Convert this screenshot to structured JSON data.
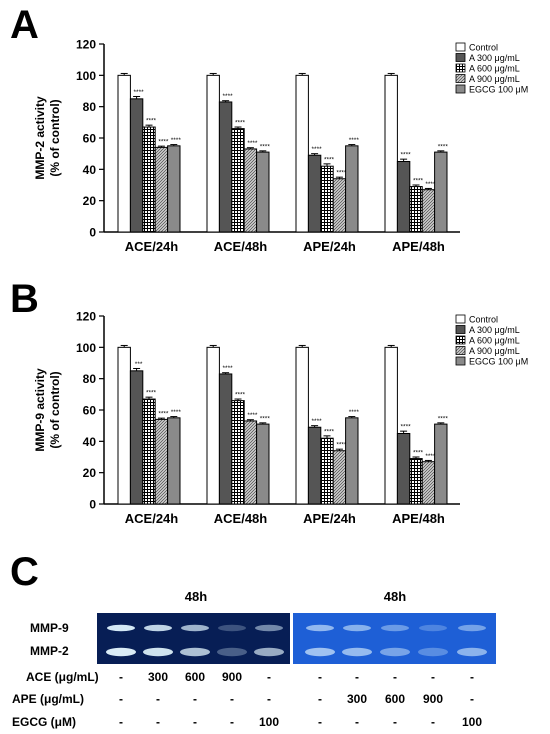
{
  "panels": {
    "a": "A",
    "b": "B",
    "c": "C"
  },
  "chart_data": [
    {
      "type": "bar",
      "panel": "A",
      "ylabel": "MMP-2 activity\n(% of control)",
      "ylim": [
        0,
        120
      ],
      "yticks": [
        0,
        20,
        40,
        60,
        80,
        100,
        120
      ],
      "categories": [
        "ACE/24h",
        "ACE/48h",
        "APE/24h",
        "APE/48h"
      ],
      "legend_position": "top-right",
      "series": [
        {
          "name": "Control",
          "values": [
            100,
            100,
            100,
            100
          ],
          "errors": [
            1.2,
            1.2,
            1.2,
            1.2
          ],
          "labels": [
            "",
            "",
            "",
            ""
          ]
        },
        {
          "name": "A 300 μg/mL",
          "values": [
            85,
            83,
            49,
            45
          ],
          "errors": [
            1.5,
            0.8,
            1.0,
            1.5
          ],
          "labels": [
            "****",
            "****",
            "****",
            "****"
          ]
        },
        {
          "name": "A 600 μg/mL",
          "values": [
            67,
            66,
            42,
            29
          ],
          "errors": [
            1.2,
            1.0,
            1.5,
            1.0
          ],
          "labels": [
            "****",
            "****",
            "****",
            "****"
          ]
        },
        {
          "name": "A 900 μg/mL",
          "values": [
            54,
            53,
            34,
            27
          ],
          "errors": [
            0.8,
            0.8,
            1.0,
            0.8
          ],
          "labels": [
            "****",
            "****",
            "****",
            "****"
          ]
        },
        {
          "name": "EGCG 100 μM",
          "values": [
            55,
            51,
            55,
            51
          ],
          "errors": [
            0.8,
            0.8,
            0.8,
            0.8
          ],
          "labels": [
            "****",
            "****",
            "****",
            "****"
          ]
        }
      ]
    },
    {
      "type": "bar",
      "panel": "B",
      "ylabel": "MMP-9 activity\n(% of control)",
      "ylim": [
        0,
        120
      ],
      "yticks": [
        0,
        20,
        40,
        60,
        80,
        100,
        120
      ],
      "categories": [
        "ACE/24h",
        "ACE/48h",
        "APE/24h",
        "APE/48h"
      ],
      "legend_position": "top-right",
      "series": [
        {
          "name": "Control",
          "values": [
            100,
            100,
            100,
            100
          ],
          "errors": [
            1.2,
            1.2,
            1.2,
            1.2
          ],
          "labels": [
            "",
            "",
            "",
            ""
          ]
        },
        {
          "name": "A 300 μg/mL",
          "values": [
            85,
            83,
            49,
            45
          ],
          "errors": [
            1.5,
            0.8,
            1.0,
            1.5
          ],
          "labels": [
            "***",
            "****",
            "****",
            "****"
          ]
        },
        {
          "name": "A 600 μg/mL",
          "values": [
            67,
            66,
            42,
            29
          ],
          "errors": [
            1.2,
            1.0,
            1.5,
            1.0
          ],
          "labels": [
            "****",
            "****",
            "****",
            "****"
          ]
        },
        {
          "name": "A 900 μg/mL",
          "values": [
            54,
            53,
            34,
            27
          ],
          "errors": [
            0.8,
            0.8,
            1.0,
            0.8
          ],
          "labels": [
            "****",
            "****",
            "****",
            "****"
          ]
        },
        {
          "name": "EGCG 100 μM",
          "values": [
            55,
            51,
            55,
            51
          ],
          "errors": [
            0.8,
            0.8,
            0.8,
            0.8
          ],
          "labels": [
            "****",
            "****",
            "****",
            "****"
          ]
        }
      ]
    }
  ],
  "gel": {
    "time_label_left": "48h",
    "time_label_right": "48h",
    "band_labels": [
      "MMP-9",
      "MMP-2"
    ],
    "rows": [
      {
        "label": "ACE (μg/mL)",
        "values": [
          "-",
          "300",
          "600",
          "900",
          "-",
          "-",
          "-",
          "-",
          "-",
          "-"
        ]
      },
      {
        "label": "APE (μg/mL)",
        "values": [
          "-",
          "-",
          "-",
          "-",
          "-",
          "-",
          "300",
          "600",
          "900",
          "-"
        ]
      },
      {
        "label": "EGCG (μM)",
        "values": [
          "-",
          "-",
          "-",
          "-",
          "100",
          "-",
          "-",
          "-",
          "-",
          "100"
        ]
      }
    ],
    "left_bg": "#071e55",
    "right_bg": "#1e5fd6"
  }
}
